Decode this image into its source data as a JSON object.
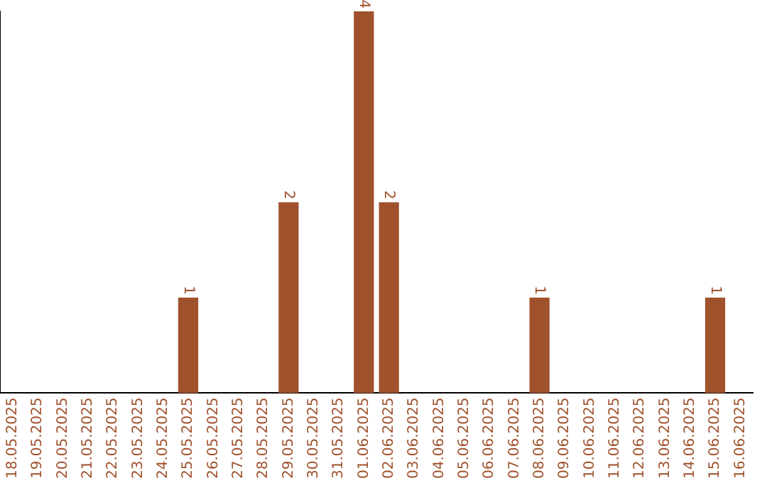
{
  "chart_data": {
    "type": "bar",
    "categories": [
      "18.05.2025",
      "19.05.2025",
      "20.05.2025",
      "21.05.2025",
      "22.05.2025",
      "23.05.2025",
      "24.05.2025",
      "25.05.2025",
      "26.05.2025",
      "27.05.2025",
      "28.05.2025",
      "29.05.2025",
      "30.05.2025",
      "31.05.2025",
      "01.06.2025",
      "02.06.2025",
      "03.06.2025",
      "04.06.2025",
      "05.06.2025",
      "06.06.2025",
      "07.06.2025",
      "08.06.2025",
      "09.06.2025",
      "10.06.2025",
      "11.06.2025",
      "12.06.2025",
      "13.06.2025",
      "14.06.2025",
      "15.06.2025",
      "16.06.2025"
    ],
    "values": [
      0,
      0,
      0,
      0,
      0,
      0,
      0,
      1,
      0,
      0,
      0,
      2,
      0,
      0,
      4,
      2,
      0,
      0,
      0,
      0,
      0,
      1,
      0,
      0,
      0,
      0,
      0,
      0,
      1,
      0
    ],
    "value_labels": [
      null,
      null,
      null,
      null,
      null,
      null,
      null,
      "1",
      null,
      null,
      null,
      "2",
      null,
      null,
      "4",
      "2",
      null,
      null,
      null,
      null,
      null,
      "1",
      null,
      null,
      null,
      null,
      null,
      null,
      "1",
      null
    ],
    "color": "#a0522d",
    "grid": false,
    "legend": false,
    "tick_labels": "x"
  }
}
